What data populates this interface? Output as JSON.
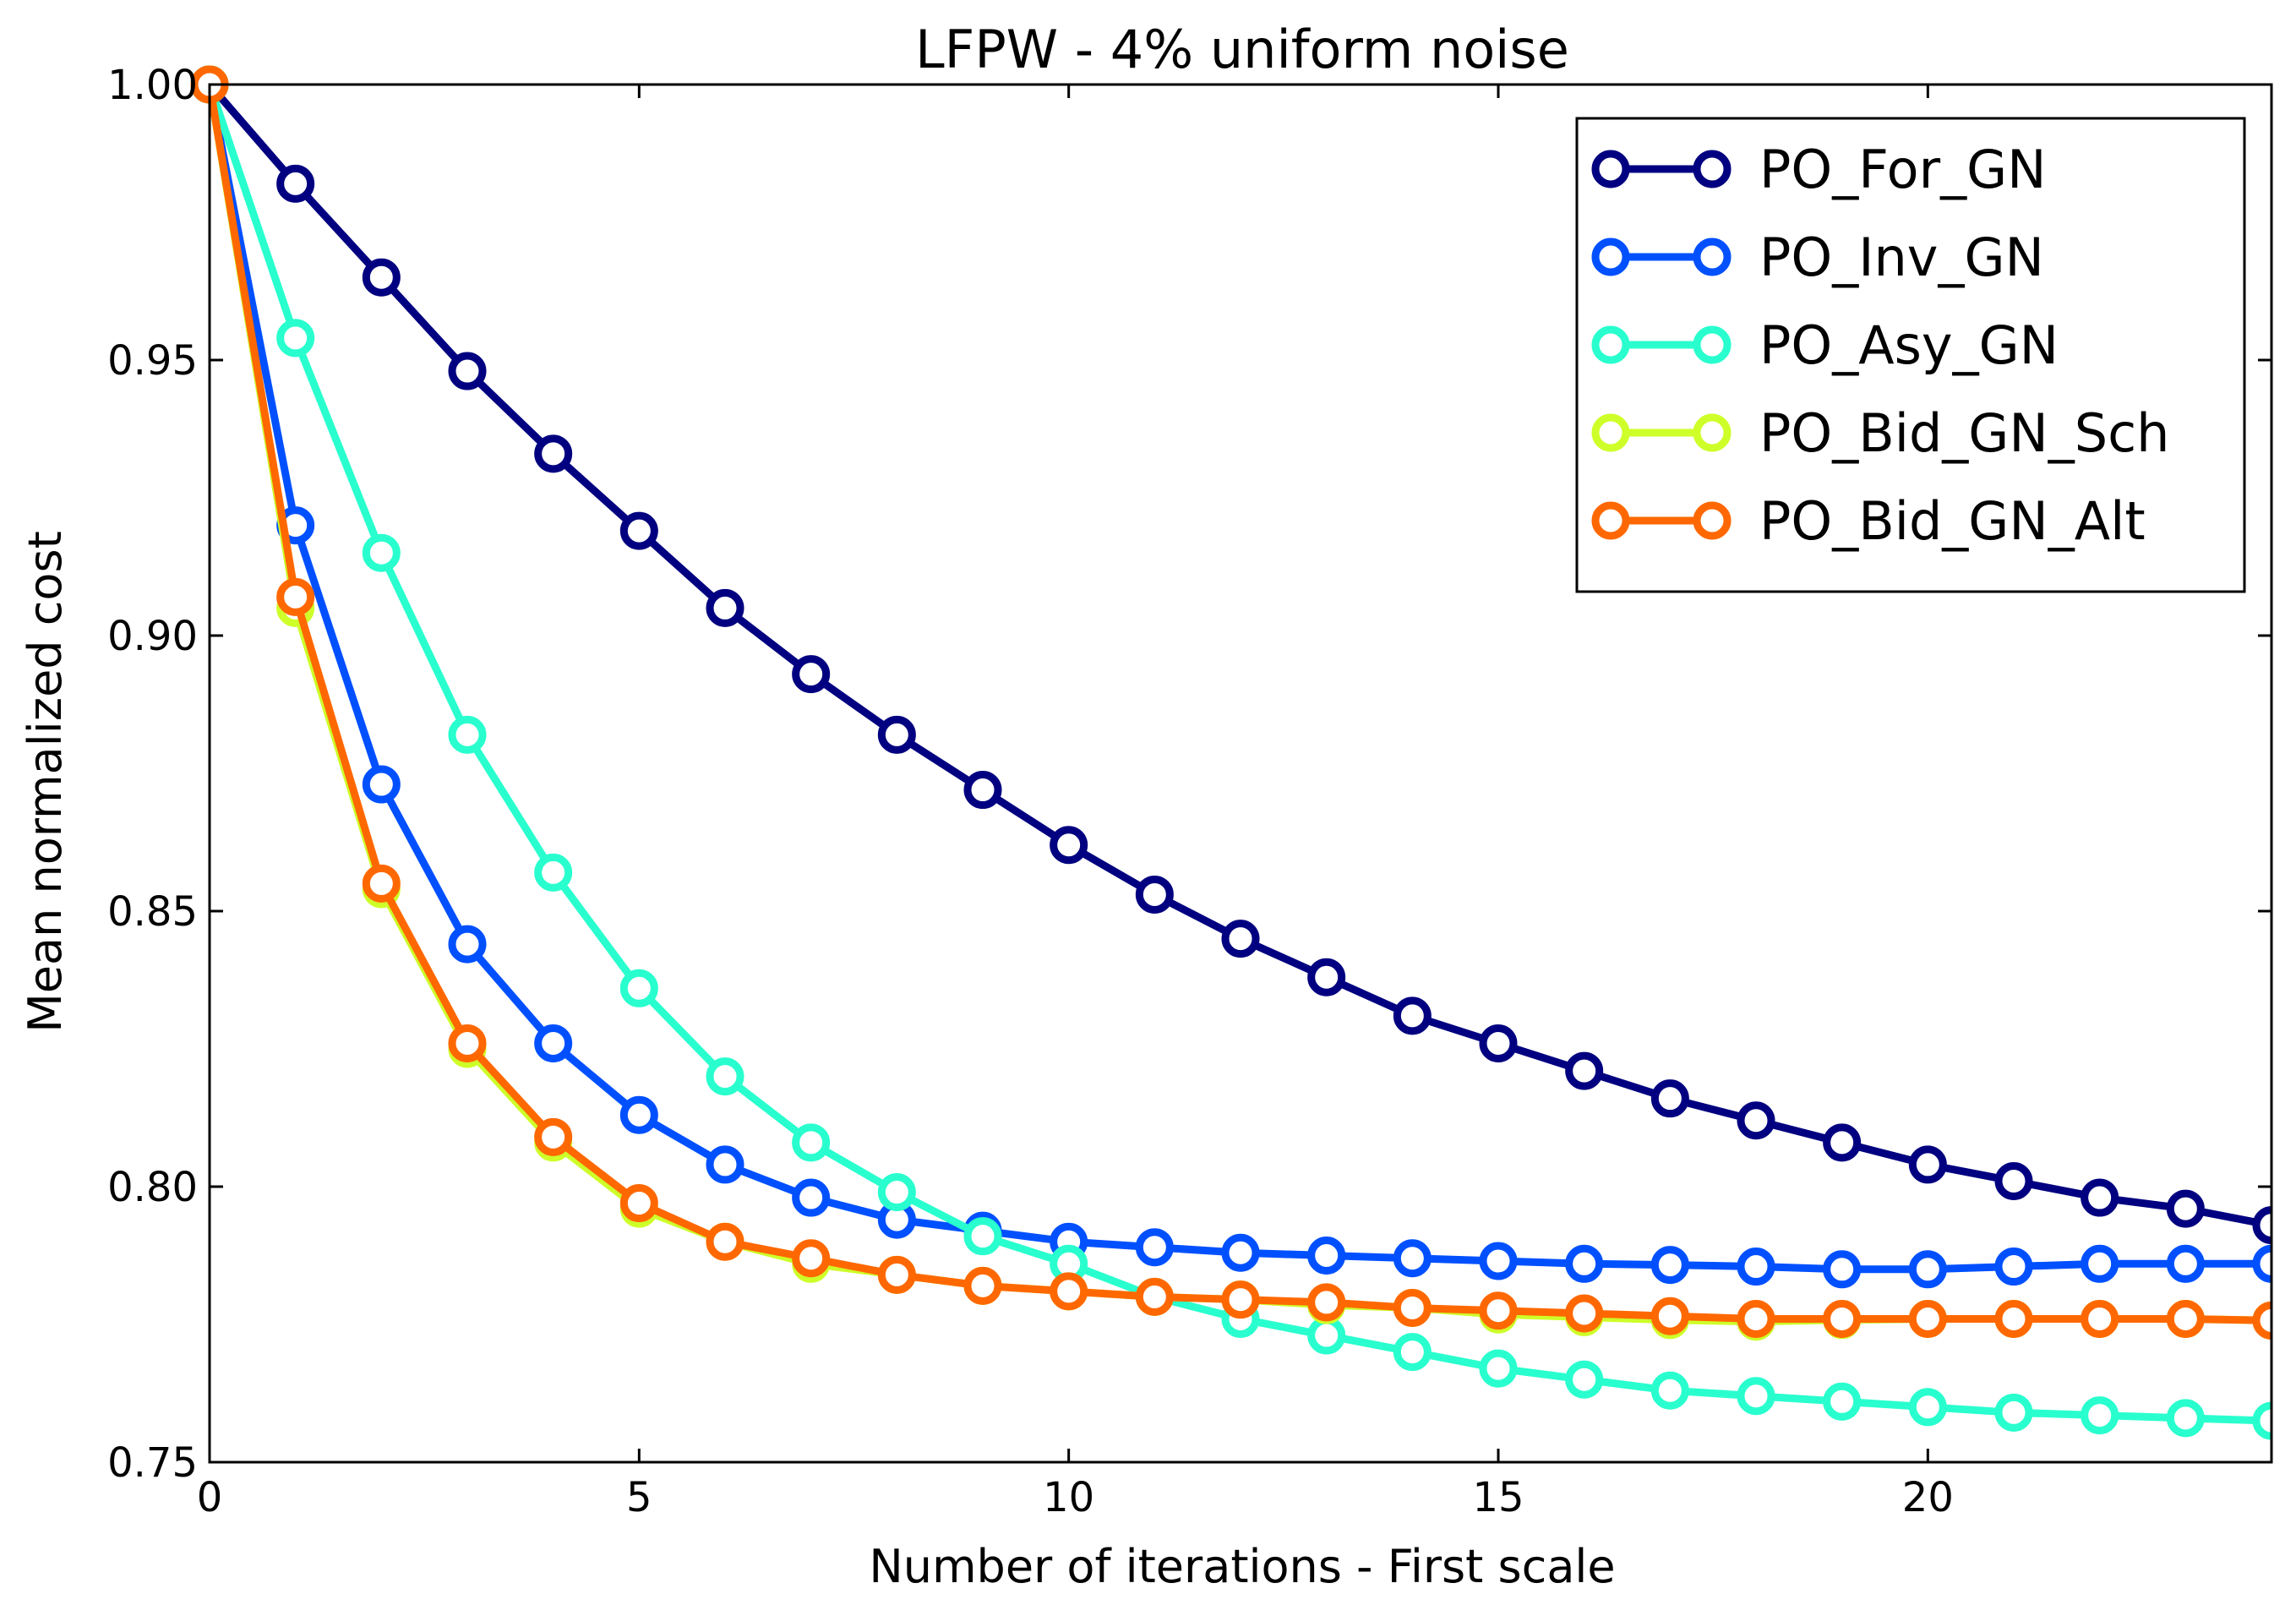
{
  "chart_data": {
    "type": "line",
    "title": "LFPW - 4% uniform noise",
    "xlabel": "Number of iterations - First scale",
    "ylabel": "Mean normalized cost",
    "xlim": [
      0,
      24
    ],
    "ylim": [
      0.75,
      1.0
    ],
    "xticks": [
      0,
      5,
      10,
      15,
      20
    ],
    "xtick_labels": [
      "0",
      "5",
      "10",
      "15",
      "20"
    ],
    "yticks": [
      0.75,
      0.8,
      0.85,
      0.9,
      0.95,
      1.0
    ],
    "ytick_labels": [
      "0.75",
      "0.80",
      "0.85",
      "0.90",
      "0.95",
      "1.00"
    ],
    "grid": false,
    "legend_position": "top-right",
    "x": [
      0,
      1,
      2,
      3,
      4,
      5,
      6,
      7,
      8,
      9,
      10,
      11,
      12,
      13,
      14,
      15,
      16,
      17,
      18,
      19,
      20,
      21,
      22,
      23,
      24
    ],
    "series": [
      {
        "name": "PO_For_GN",
        "color": "#000080",
        "values": [
          1.0,
          0.982,
          0.965,
          0.948,
          0.933,
          0.919,
          0.905,
          0.893,
          0.882,
          0.872,
          0.862,
          0.853,
          0.845,
          0.838,
          0.831,
          0.826,
          0.821,
          0.816,
          0.812,
          0.808,
          0.804,
          0.801,
          0.798,
          0.796,
          0.793
        ]
      },
      {
        "name": "PO_Inv_GN",
        "color": "#0050FF",
        "values": [
          1.0,
          0.92,
          0.873,
          0.844,
          0.826,
          0.813,
          0.804,
          0.798,
          0.794,
          0.792,
          0.79,
          0.789,
          0.788,
          0.7875,
          0.787,
          0.7865,
          0.786,
          0.7858,
          0.7855,
          0.785,
          0.785,
          0.7855,
          0.786,
          0.786,
          0.786
        ]
      },
      {
        "name": "PO_Asy_GN",
        "color": "#29FFCE",
        "values": [
          1.0,
          0.954,
          0.915,
          0.882,
          0.857,
          0.836,
          0.82,
          0.808,
          0.799,
          0.791,
          0.786,
          0.78,
          0.776,
          0.773,
          0.77,
          0.767,
          0.765,
          0.763,
          0.762,
          0.761,
          0.76,
          0.759,
          0.7585,
          0.758,
          0.7575
        ]
      },
      {
        "name": "PO_Bid_GN_Sch",
        "color": "#CEFF29",
        "values": [
          1.0,
          0.905,
          0.854,
          0.825,
          0.808,
          0.796,
          0.79,
          0.786,
          0.784,
          0.782,
          0.781,
          0.78,
          0.7795,
          0.7785,
          0.778,
          0.7768,
          0.7763,
          0.7758,
          0.7755,
          0.7758,
          0.776,
          0.776,
          0.776,
          0.776,
          0.7757
        ]
      },
      {
        "name": "PO_Bid_GN_Alt",
        "color": "#FF6800",
        "values": [
          1.0,
          0.907,
          0.855,
          0.826,
          0.809,
          0.797,
          0.79,
          0.787,
          0.784,
          0.782,
          0.781,
          0.78,
          0.7795,
          0.779,
          0.778,
          0.7775,
          0.777,
          0.7765,
          0.776,
          0.776,
          0.776,
          0.776,
          0.776,
          0.776,
          0.7757
        ]
      }
    ]
  }
}
